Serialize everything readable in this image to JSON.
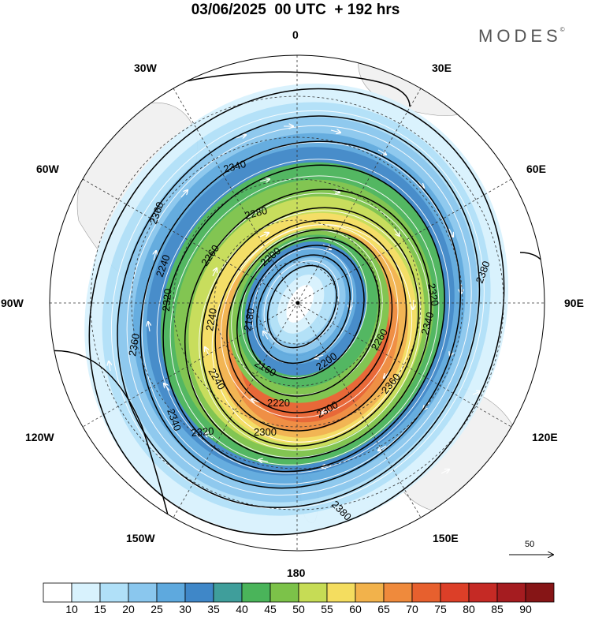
{
  "title": "03/06/2025  00 UTC  + 192 hrs",
  "brand": "MODES",
  "brand_mark": "©",
  "longitude_labels": {
    "lon_0": "0",
    "lon_30w": "30W",
    "lon_30e": "30E",
    "lon_60w": "60W",
    "lon_60e": "60E",
    "lon_90w": "90W",
    "lon_90e": "90E",
    "lon_120w": "120W",
    "lon_120e": "120E",
    "lon_150w": "150W",
    "lon_150e": "150E",
    "lon_180": "180"
  },
  "contour_labels": [
    "2340",
    "2360",
    "2280",
    "2240",
    "2260",
    "2200",
    "2320",
    "2180",
    "2160",
    "2240",
    "2240",
    "2200",
    "2260",
    "2320",
    "2340",
    "2380",
    "2360",
    "2340",
    "2220",
    "2300",
    "2300",
    "2320",
    "2360",
    "2380"
  ],
  "reference_vector": {
    "label": "50"
  },
  "colorbar": {
    "ticks": [
      "10",
      "15",
      "20",
      "25",
      "30",
      "35",
      "40",
      "45",
      "50",
      "55",
      "60",
      "65",
      "70",
      "75",
      "80",
      "85",
      "90"
    ],
    "colors": [
      "#ffffff",
      "#d8f2fd",
      "#b0e0f8",
      "#8ac7ee",
      "#5ea9de",
      "#3f87c8",
      "#3f9e9b",
      "#4ab45a",
      "#7cc249",
      "#c6dc55",
      "#f4dd5f",
      "#f2b24b",
      "#ef8a3c",
      "#e7602e",
      "#dc3f28",
      "#c52a25",
      "#a51c20",
      "#861516"
    ]
  }
}
